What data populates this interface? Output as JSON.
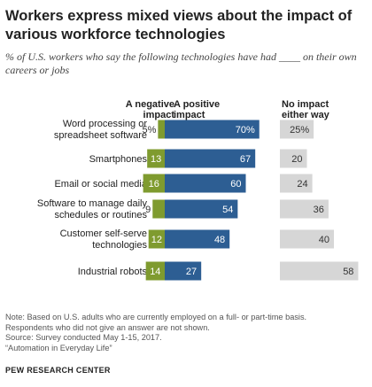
{
  "title": "Workers express mixed views about the impact of various workforce technologies",
  "subtitle": "% of U.S. workers who say the following technologies have had ____ on their own careers or jobs",
  "column_headers": {
    "negative": "A negative impact",
    "positive": "A positive impact",
    "none": "No impact either way"
  },
  "colors": {
    "negative": "#7f9b2f",
    "positive": "#2d5e93",
    "none": "#d6d6d6"
  },
  "chart_data": {
    "type": "bar",
    "categories": [
      "Word processing or spreadsheet software",
      "Smartphones",
      "Email or social media",
      "Software to manage daily schedules or routines",
      "Customer self-serve technologies",
      "Industrial robots"
    ],
    "series": [
      {
        "name": "A negative impact",
        "values": [
          5,
          13,
          16,
          9,
          12,
          14
        ],
        "labels": [
          "5%",
          "13",
          "16",
          "9",
          "12",
          "14"
        ]
      },
      {
        "name": "A positive impact",
        "values": [
          70,
          67,
          60,
          54,
          48,
          27
        ],
        "labels": [
          "70%",
          "67",
          "60",
          "54",
          "48",
          "27"
        ]
      },
      {
        "name": "No impact either way",
        "values": [
          25,
          20,
          24,
          36,
          40,
          58
        ],
        "labels": [
          "25%",
          "20",
          "24",
          "36",
          "40",
          "58"
        ]
      }
    ]
  },
  "notes": [
    "Note: Based on U.S. adults who are currently employed on a full- or part-time basis.",
    "Respondents who did not give an answer are not shown.",
    "Source: Survey conducted May 1-15, 2017.",
    "“Automation in Everyday Life”"
  ],
  "source_org": "PEW RESEARCH CENTER"
}
